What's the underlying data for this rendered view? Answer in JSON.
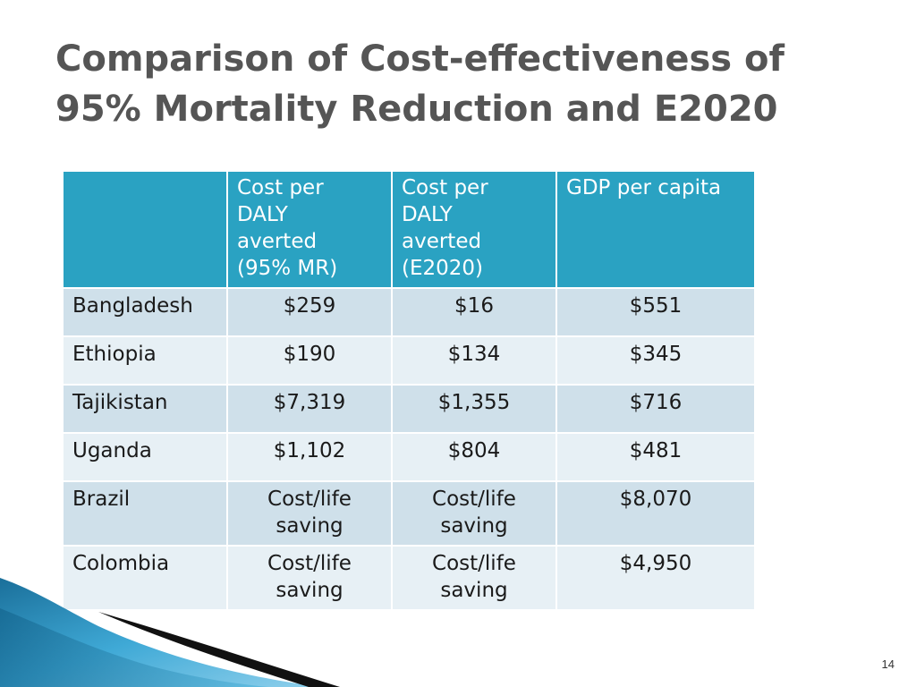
{
  "slide": {
    "title": "Comparison of Cost-effectiveness of\n95% Mortality Reduction and E2020",
    "page_number": "14"
  },
  "table": {
    "headers": [
      "",
      "Cost per\nDALY\naverted\n(95% MR)",
      "Cost per\nDALY\naverted\n(E2020)",
      "GDP per capita"
    ],
    "rows": [
      [
        "Bangladesh",
        "$259",
        "$16",
        "$551"
      ],
      [
        "Ethiopia",
        "$190",
        "$134",
        "$345"
      ],
      [
        "Tajikistan",
        "$7,319",
        "$1,355",
        "$716"
      ],
      [
        "Uganda",
        "$1,102",
        "$804",
        "$481"
      ],
      [
        "Brazil",
        "Cost/life\nsaving",
        "Cost/life\nsaving",
        "$8,070"
      ],
      [
        "Colombia",
        "Cost/life\nsaving",
        "Cost/life\nsaving",
        "$4,950"
      ]
    ]
  },
  "colors": {
    "title": "#555555",
    "header_bg": "#2aa2c2",
    "row_dark": "#cfe0ea",
    "row_light": "#e7f0f5",
    "accent_wave": "#1f8fbf"
  }
}
